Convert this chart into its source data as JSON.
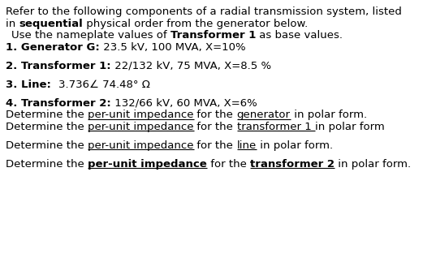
{
  "bg_color": "#ffffff",
  "figsize": [
    5.37,
    3.18
  ],
  "dpi": 100,
  "fontsize": 9.5,
  "lines": [
    {
      "segments": [
        {
          "text": "Refer to the following components of a radial transmission system, listed",
          "bold": false,
          "underline": false
        }
      ]
    },
    {
      "segments": [
        {
          "text": "in ",
          "bold": false,
          "underline": false
        },
        {
          "text": "sequential",
          "bold": true,
          "underline": false
        },
        {
          "text": " physical order from the generator below.",
          "bold": false,
          "underline": false
        }
      ]
    },
    {
      "indent": true,
      "segments": [
        {
          "text": "Use the nameplate values of ",
          "bold": false,
          "underline": false
        },
        {
          "text": "Transformer 1",
          "bold": true,
          "underline": false
        },
        {
          "text": " as base values.",
          "bold": false,
          "underline": false
        }
      ]
    },
    {
      "segments": [
        {
          "text": "1. Generator G:",
          "bold": true,
          "underline": false
        },
        {
          "text": " 23.5 kV, 100 MVA, X=10%",
          "bold": false,
          "underline": false
        }
      ]
    },
    {
      "spacer": true,
      "segments": [
        {
          "text": "2. Transformer 1:",
          "bold": true,
          "underline": false
        },
        {
          "text": " 22/132 kV, 75 MVA, X=8.5 %",
          "bold": false,
          "underline": false
        }
      ]
    },
    {
      "spacer": true,
      "segments": [
        {
          "text": "3. Line:  ",
          "bold": true,
          "underline": false
        },
        {
          "text": "3.736∠ 74.48° Ω",
          "bold": false,
          "underline": false
        }
      ]
    },
    {
      "spacer": true,
      "segments": [
        {
          "text": "4. Transformer 2:",
          "bold": true,
          "underline": false
        },
        {
          "text": " 132/66 kV, 60 MVA, X=6%",
          "bold": false,
          "underline": false
        }
      ]
    },
    {
      "segments": [
        {
          "text": "Determine the ",
          "bold": false,
          "underline": false
        },
        {
          "text": "per-unit impedance",
          "bold": false,
          "underline": true
        },
        {
          "text": " for the ",
          "bold": false,
          "underline": false
        },
        {
          "text": "generator",
          "bold": false,
          "underline": true
        },
        {
          "text": " in polar form.",
          "bold": false,
          "underline": false
        }
      ]
    },
    {
      "segments": [
        {
          "text": "Determine the ",
          "bold": false,
          "underline": false
        },
        {
          "text": "per-unit impedance",
          "bold": false,
          "underline": true
        },
        {
          "text": " for the ",
          "bold": false,
          "underline": false
        },
        {
          "text": "transformer 1 ",
          "bold": false,
          "underline": true
        },
        {
          "text": "in polar form",
          "bold": false,
          "underline": false
        }
      ]
    },
    {
      "spacer": true,
      "segments": [
        {
          "text": "Determine the ",
          "bold": false,
          "underline": false
        },
        {
          "text": "per-unit impedance",
          "bold": false,
          "underline": true
        },
        {
          "text": " for the ",
          "bold": false,
          "underline": false
        },
        {
          "text": "line",
          "bold": false,
          "underline": true
        },
        {
          "text": " in polar form.",
          "bold": false,
          "underline": false
        }
      ]
    },
    {
      "spacer": true,
      "segments": [
        {
          "text": "Determine the ",
          "bold": false,
          "underline": false
        },
        {
          "text": "per-unit impedance",
          "bold": true,
          "underline": true
        },
        {
          "text": " for the ",
          "bold": false,
          "underline": false
        },
        {
          "text": "transformer 2",
          "bold": true,
          "underline": true
        },
        {
          "text": " in polar form.",
          "bold": false,
          "underline": false
        }
      ]
    }
  ]
}
